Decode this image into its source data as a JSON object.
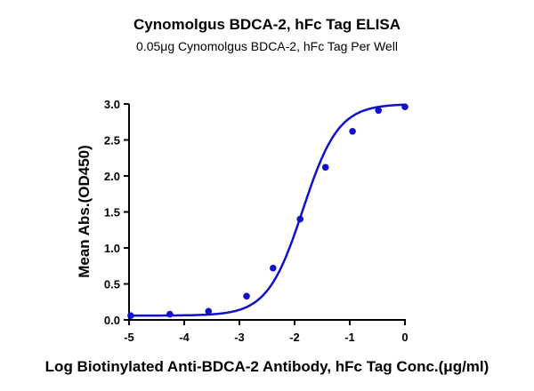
{
  "title": "Cynomolgus BDCA-2, hFc Tag ELISA",
  "subtitle": "0.05μg Cynomolgus BDCA-2, hFc Tag Per Well",
  "colors": {
    "series": "#1010c8",
    "axis": "#000000"
  },
  "chart_data": {
    "type": "scatter",
    "title": "Cynomolgus BDCA-2, hFc Tag ELISA",
    "subtitle": "0.05μg Cynomolgus BDCA-2, hFc Tag Per Well",
    "xlabel": "Log Biotinylated Anti-BDCA-2 Antibody, hFc Tag Conc.(μg/ml)",
    "ylabel": "Mean Abs.(OD450)",
    "xlim": [
      -5,
      0
    ],
    "ylim": [
      0,
      3.0
    ],
    "xticks": [
      "-5",
      "-4",
      "-3",
      "-2",
      "-1",
      "0"
    ],
    "yticks": [
      "0.0",
      "0.5",
      "1.0",
      "1.5",
      "2.0",
      "2.5",
      "3.0"
    ],
    "grid": false,
    "legend": null,
    "fit": "sigmoidal 4PL curve",
    "series": [
      {
        "name": "Mean Abs.(OD450)",
        "x": [
          -4.97,
          -4.26,
          -3.56,
          -2.87,
          -2.39,
          -1.9,
          -1.44,
          -0.95,
          -0.48,
          0.0
        ],
        "y": [
          0.06,
          0.08,
          0.12,
          0.33,
          0.72,
          1.4,
          2.12,
          2.62,
          2.91,
          2.96
        ]
      }
    ]
  }
}
